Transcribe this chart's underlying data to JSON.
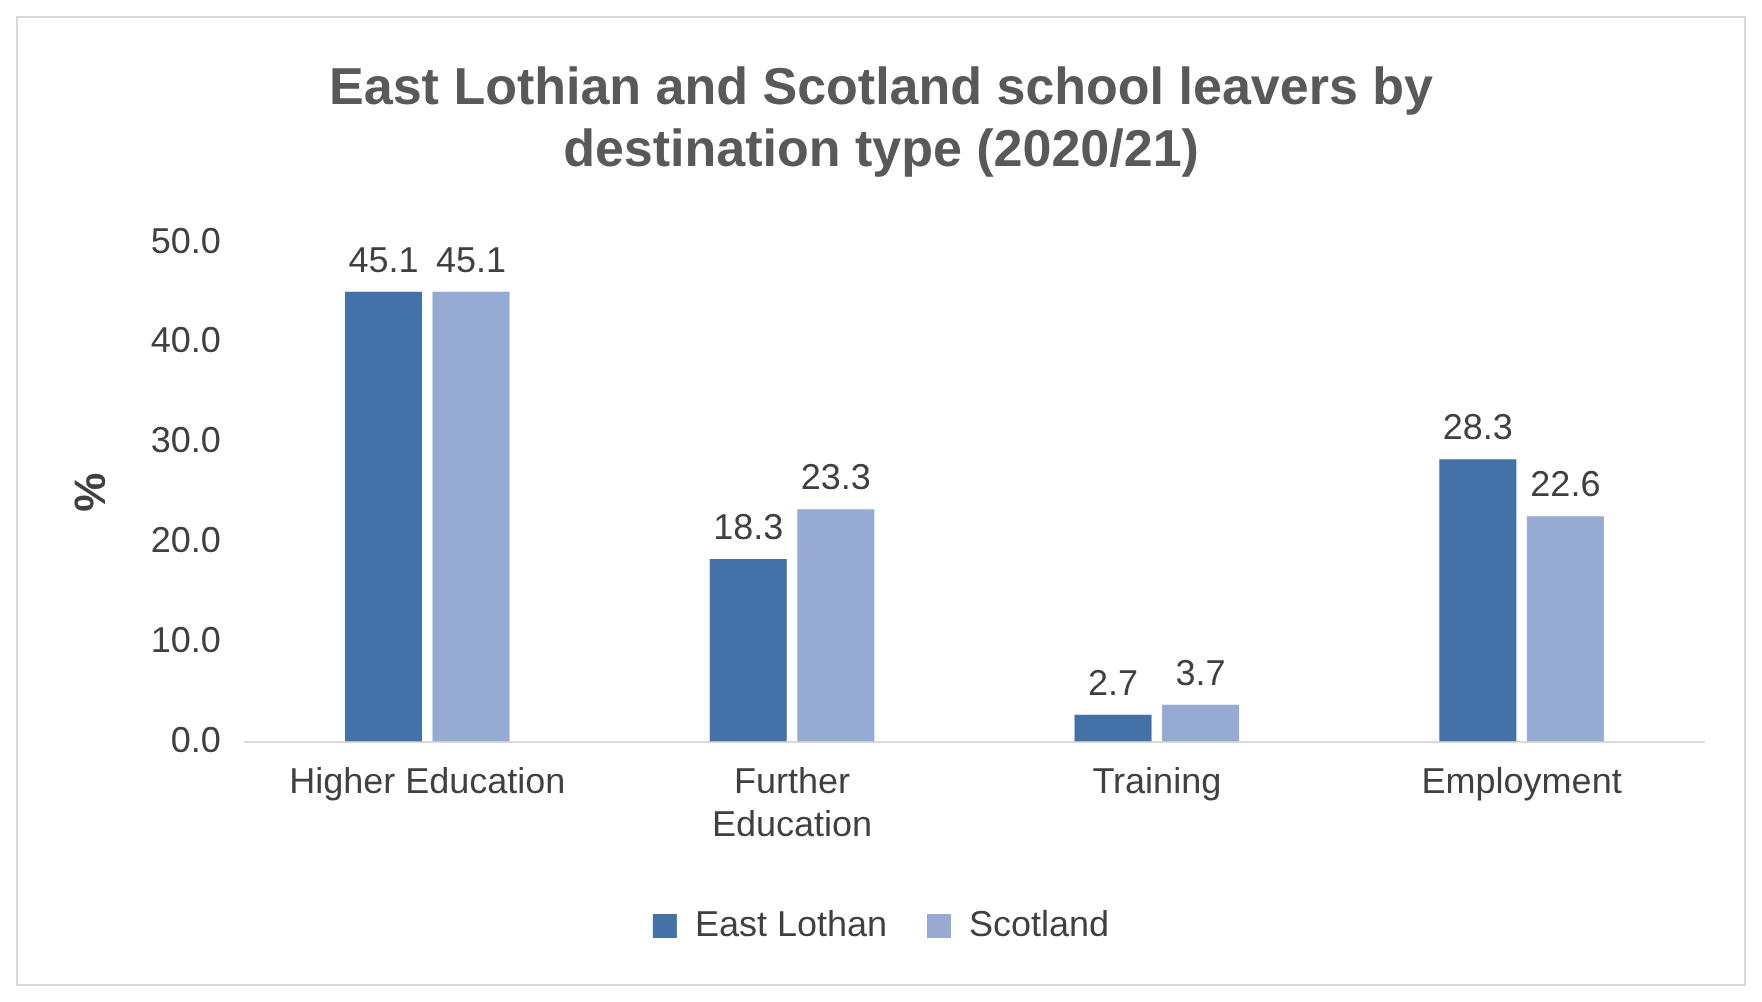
{
  "chart_data": {
    "type": "bar",
    "title": "East Lothian and Scotland school leavers by destination type (2020/21)",
    "ylabel": "%",
    "categories": [
      "Higher Education",
      "Further Education",
      "Training",
      "Employment"
    ],
    "series": [
      {
        "name": "East Lothan",
        "color": "#4472a8",
        "values": [
          45.1,
          18.3,
          2.7,
          28.3
        ]
      },
      {
        "name": "Scotland",
        "color": "#95abd3",
        "values": [
          45.1,
          23.3,
          3.7,
          22.6
        ]
      }
    ],
    "ylim": [
      0,
      50
    ],
    "yticks": [
      {
        "value": 0,
        "label": "0.0"
      },
      {
        "value": 10,
        "label": "10.0"
      },
      {
        "value": 20,
        "label": "20.0"
      },
      {
        "value": 30,
        "label": "30.0"
      },
      {
        "value": 40,
        "label": "40.0"
      },
      {
        "value": 50,
        "label": "50.0"
      }
    ],
    "grid": false,
    "legend": "bottom",
    "data_labels": true
  }
}
